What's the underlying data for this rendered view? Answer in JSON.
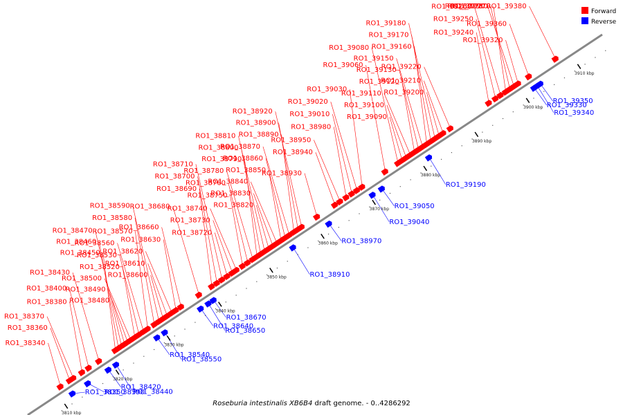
{
  "caption": {
    "organism": "Roseburia intestinalis XB6B4",
    "rest": " draft genome. - 0..4286292"
  },
  "legend": [
    {
      "label": "Forward",
      "color": "#ff0000"
    },
    {
      "label": "Reverse",
      "color": "#0000ff"
    }
  ],
  "colors": {
    "forward": "#ff0000",
    "reverse": "#0000ff",
    "axis": "#888888"
  },
  "axis": {
    "unit": "kbp",
    "ticks": [
      {
        "kbp": 3810,
        "label": "3810 kbp"
      },
      {
        "kbp": 3820,
        "label": "3820 kbp"
      },
      {
        "kbp": 3830,
        "label": "3830 kbp"
      },
      {
        "kbp": 3840,
        "label": "3840 kbp"
      },
      {
        "kbp": 3850,
        "label": "3850 kbp"
      },
      {
        "kbp": 3860,
        "label": "3860 kbp"
      },
      {
        "kbp": 3870,
        "label": "3870 kbp"
      },
      {
        "kbp": 3880,
        "label": "3880 kbp"
      },
      {
        "kbp": 3890,
        "label": "3890 kbp"
      },
      {
        "kbp": 3900,
        "label": "3900 kbp"
      },
      {
        "kbp": 3910,
        "label": "3910 kbp"
      }
    ]
  },
  "genes": [
    {
      "label": "RO1_38340",
      "strand": "forward",
      "kbp": 3811.0
    },
    {
      "label": "RO1_38350",
      "strand": "reverse",
      "kbp": 3812.0
    },
    {
      "label": "RO1_38360",
      "strand": "forward",
      "kbp": 3812.8
    },
    {
      "label": "RO1_38370",
      "strand": "forward",
      "kbp": 3813.5
    },
    {
      "label": "RO1_38380",
      "strand": "forward",
      "kbp": 3815.2
    },
    {
      "label": "RO1_38390",
      "strand": "reverse",
      "kbp": 3815.0
    },
    {
      "label": "RO1_38400",
      "strand": "forward",
      "kbp": 3816.5
    },
    {
      "label": "RO1_38420",
      "strand": "reverse",
      "kbp": 3819.0
    },
    {
      "label": "RO1_38430",
      "strand": "forward",
      "kbp": 3818.5
    },
    {
      "label": "RO1_38440",
      "strand": "reverse",
      "kbp": 3820.5
    },
    {
      "label": "RO1_38450",
      "strand": "forward",
      "kbp": 3821.7
    },
    {
      "label": "RO1_38460",
      "strand": "forward",
      "kbp": 3822.3
    },
    {
      "label": "RO1_38470",
      "strand": "forward",
      "kbp": 3822.9
    },
    {
      "label": "RO1_38480",
      "strand": "forward",
      "kbp": 3823.5
    },
    {
      "label": "RO1_38490",
      "strand": "forward",
      "kbp": 3824.1
    },
    {
      "label": "RO1_38500",
      "strand": "forward",
      "kbp": 3824.7
    },
    {
      "label": "RO1_38520",
      "strand": "forward",
      "kbp": 3825.5
    },
    {
      "label": "RO1_38530",
      "strand": "forward",
      "kbp": 3826.3
    },
    {
      "label": "RO1_38540",
      "strand": "reverse",
      "kbp": 3828.5
    },
    {
      "label": "RO1_38550",
      "strand": "reverse",
      "kbp": 3830.0
    },
    {
      "label": "RO1_38560",
      "strand": "forward",
      "kbp": 3827.2
    },
    {
      "label": "RO1_38570",
      "strand": "forward",
      "kbp": 3828.0
    },
    {
      "label": "RO1_38580",
      "strand": "forward",
      "kbp": 3829.3
    },
    {
      "label": "RO1_38590",
      "strand": "forward",
      "kbp": 3830.2
    },
    {
      "label": "RO1_38600",
      "strand": "forward",
      "kbp": 3831.0
    },
    {
      "label": "RO1_38610",
      "strand": "forward",
      "kbp": 3831.8
    },
    {
      "label": "RO1_38620",
      "strand": "forward",
      "kbp": 3832.7
    },
    {
      "label": "RO1_38630",
      "strand": "forward",
      "kbp": 3833.5
    },
    {
      "label": "RO1_38640",
      "strand": "reverse",
      "kbp": 3837.0
    },
    {
      "label": "RO1_38650",
      "strand": "reverse",
      "kbp": 3838.5
    },
    {
      "label": "RO1_38660",
      "strand": "forward",
      "kbp": 3834.5
    },
    {
      "label": "RO1_38670",
      "strand": "reverse",
      "kbp": 3839.5
    },
    {
      "label": "RO1_38680",
      "strand": "forward",
      "kbp": 3838.0
    },
    {
      "label": "RO1_38690",
      "strand": "forward",
      "kbp": 3840.5
    },
    {
      "label": "RO1_38700",
      "strand": "forward",
      "kbp": 3841.5
    },
    {
      "label": "RO1_38710",
      "strand": "forward",
      "kbp": 3842.5
    },
    {
      "label": "RO1_38720",
      "strand": "forward",
      "kbp": 3843.5
    },
    {
      "label": "RO1_38730",
      "strand": "forward",
      "kbp": 3844.5
    },
    {
      "label": "RO1_38740",
      "strand": "forward",
      "kbp": 3845.3
    },
    {
      "label": "RO1_38750",
      "strand": "forward",
      "kbp": 3846.5
    },
    {
      "label": "RO1_38760",
      "strand": "forward",
      "kbp": 3847.5
    },
    {
      "label": "RO1_38780",
      "strand": "forward",
      "kbp": 3848.5
    },
    {
      "label": "RO1_38790",
      "strand": "forward",
      "kbp": 3849.3
    },
    {
      "label": "RO1_38800",
      "strand": "forward",
      "kbp": 3850.0
    },
    {
      "label": "RO1_38810",
      "strand": "forward",
      "kbp": 3850.8
    },
    {
      "label": "RO1_38820",
      "strand": "forward",
      "kbp": 3851.6
    },
    {
      "label": "RO1_38830",
      "strand": "forward",
      "kbp": 3852.4
    },
    {
      "label": "RO1_38840",
      "strand": "forward",
      "kbp": 3853.2
    },
    {
      "label": "RO1_38850",
      "strand": "forward",
      "kbp": 3854.0
    },
    {
      "label": "RO1_38860",
      "strand": "forward",
      "kbp": 3854.8
    },
    {
      "label": "RO1_38870",
      "strand": "forward",
      "kbp": 3855.6
    },
    {
      "label": "RO1_38890",
      "strand": "forward",
      "kbp": 3856.5
    },
    {
      "label": "RO1_38900",
      "strand": "forward",
      "kbp": 3857.3
    },
    {
      "label": "RO1_38910",
      "strand": "reverse",
      "kbp": 3855.0
    },
    {
      "label": "RO1_38920",
      "strand": "forward",
      "kbp": 3858.0
    },
    {
      "label": "RO1_38930",
      "strand": "forward",
      "kbp": 3861.0
    },
    {
      "label": "RO1_38940",
      "strand": "forward",
      "kbp": 3864.5
    },
    {
      "label": "RO1_38950",
      "strand": "forward",
      "kbp": 3865.5
    },
    {
      "label": "RO1_38970",
      "strand": "reverse",
      "kbp": 3862.0
    },
    {
      "label": "RO1_38980",
      "strand": "forward",
      "kbp": 3866.7
    },
    {
      "label": "RO1_39010",
      "strand": "forward",
      "kbp": 3867.8
    },
    {
      "label": "RO1_39020",
      "strand": "forward",
      "kbp": 3868.8
    },
    {
      "label": "RO1_39030",
      "strand": "forward",
      "kbp": 3869.8
    },
    {
      "label": "RO1_39040",
      "strand": "reverse",
      "kbp": 3870.5
    },
    {
      "label": "RO1_39050",
      "strand": "reverse",
      "kbp": 3872.3
    },
    {
      "label": "RO1_39060",
      "strand": "forward",
      "kbp": 3874.3
    },
    {
      "label": "RO1_39080",
      "strand": "forward",
      "kbp": 3876.8
    },
    {
      "label": "RO1_39090",
      "strand": "forward",
      "kbp": 3877.6
    },
    {
      "label": "RO1_39100",
      "strand": "forward",
      "kbp": 3878.4
    },
    {
      "label": "RO1_39110",
      "strand": "forward",
      "kbp": 3879.2
    },
    {
      "label": "RO1_39120",
      "strand": "forward",
      "kbp": 3880.0
    },
    {
      "label": "RO1_39130",
      "strand": "forward",
      "kbp": 3880.8
    },
    {
      "label": "RO1_39150",
      "strand": "forward",
      "kbp": 3881.6
    },
    {
      "label": "RO1_39160",
      "strand": "forward",
      "kbp": 3882.4
    },
    {
      "label": "RO1_39170",
      "strand": "forward",
      "kbp": 3883.2
    },
    {
      "label": "RO1_39180",
      "strand": "forward",
      "kbp": 3884.0
    },
    {
      "label": "RO1_39190",
      "strand": "reverse",
      "kbp": 3881.5
    },
    {
      "label": "RO1_39200",
      "strand": "forward",
      "kbp": 3884.8
    },
    {
      "label": "RO1_39210",
      "strand": "forward",
      "kbp": 3885.6
    },
    {
      "label": "RO1_39220",
      "strand": "forward",
      "kbp": 3887.0
    },
    {
      "label": "RO1_39240",
      "strand": "forward",
      "kbp": 3894.5
    },
    {
      "label": "RO1_39250",
      "strand": "forward",
      "kbp": 3895.8
    },
    {
      "label": "RO1_39260",
      "strand": "forward",
      "kbp": 3896.8
    },
    {
      "label": "RO1_39270",
      "strand": "forward",
      "kbp": 3897.8
    },
    {
      "label": "RO1_39280",
      "strand": "forward",
      "kbp": 3898.6
    },
    {
      "label": "RO1_39290",
      "strand": "forward",
      "kbp": 3899.4
    },
    {
      "label": "RO1_39320",
      "strand": "forward",
      "kbp": 3900.2
    },
    {
      "label": "RO1_39330",
      "strand": "reverse",
      "kbp": 3902.0
    },
    {
      "label": "RO1_39340",
      "strand": "reverse",
      "kbp": 3902.6
    },
    {
      "label": "RO1_39350",
      "strand": "reverse",
      "kbp": 3903.2
    },
    {
      "label": "RO1_39360",
      "strand": "forward",
      "kbp": 3902.3
    },
    {
      "label": "RO1_39380",
      "strand": "forward",
      "kbp": 3907.5
    }
  ]
}
